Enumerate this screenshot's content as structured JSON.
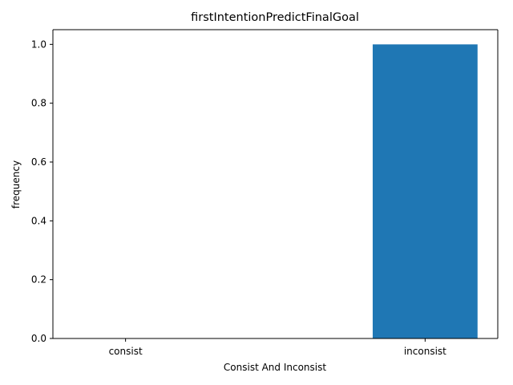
{
  "chart_data": {
    "type": "bar",
    "title": "firstIntentionPredictFinalGoal",
    "xlabel": "Consist And Inconsist",
    "ylabel": "frequency",
    "categories": [
      "consist",
      "inconsist"
    ],
    "values": [
      0.0,
      1.0
    ],
    "ylim": [
      0.0,
      1.05
    ],
    "yticks": [
      0.0,
      0.2,
      0.4,
      0.6,
      0.8,
      1.0
    ],
    "ytick_labels": [
      "0.0",
      "0.2",
      "0.4",
      "0.6",
      "0.8",
      "1.0"
    ],
    "bar_color": "#1f77b4",
    "grid": false,
    "legend": false
  }
}
